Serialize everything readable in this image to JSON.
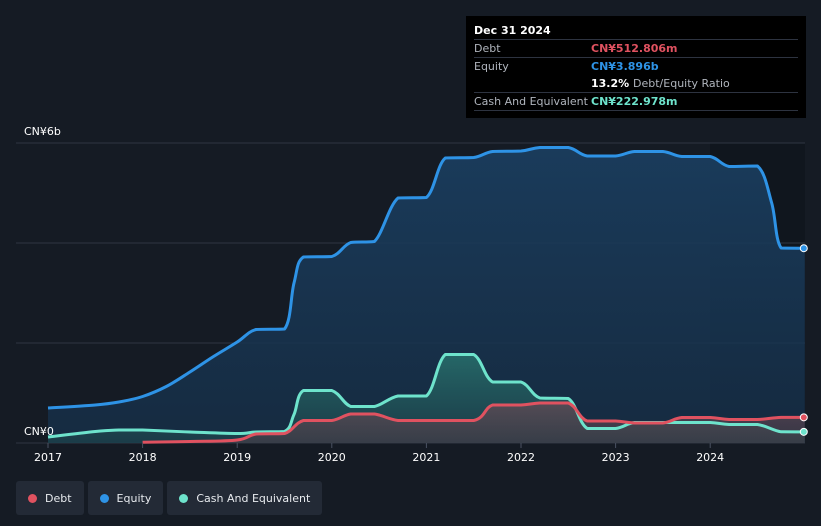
{
  "tooltip": {
    "date": "Dec 31 2024",
    "debt_label": "Debt",
    "debt_value": "CN¥512.806m",
    "equity_label": "Equity",
    "equity_value": "CN¥3.896b",
    "ratio_value": "13.2%",
    "ratio_label": "Debt/Equity Ratio",
    "cash_label": "Cash And Equivalent",
    "cash_value": "CN¥222.978m"
  },
  "legend": [
    {
      "label": "Debt",
      "color": "#e05260"
    },
    {
      "label": "Equity",
      "color": "#2e93e6"
    },
    {
      "label": "Cash And Equivalent",
      "color": "#6ee3cc"
    }
  ],
  "colors": {
    "debt": "#e05260",
    "equity": "#2e93e6",
    "cash": "#6ee3cc",
    "background": "#151b24",
    "grid": "#2e3542"
  },
  "chart_data": {
    "type": "area",
    "ylabel_top": "CN¥6b",
    "ylabel_bottom": "CN¥0",
    "ylim": [
      0,
      6000
    ],
    "xlim": [
      2017.0,
      2025.0
    ],
    "x_ticks": [
      "2017",
      "2018",
      "2019",
      "2020",
      "2021",
      "2022",
      "2023",
      "2024"
    ],
    "grid": true,
    "series": [
      {
        "name": "Equity",
        "points": [
          [
            2017.0,
            700
          ],
          [
            2017.5,
            760
          ],
          [
            2017.75,
            820
          ],
          [
            2018.0,
            930
          ],
          [
            2018.25,
            1130
          ],
          [
            2018.5,
            1420
          ],
          [
            2018.75,
            1730
          ],
          [
            2019.0,
            2020
          ],
          [
            2019.2,
            2270
          ],
          [
            2019.5,
            2280
          ],
          [
            2019.6,
            3200
          ],
          [
            2019.7,
            3720
          ],
          [
            2020.0,
            3730
          ],
          [
            2020.2,
            4010
          ],
          [
            2020.45,
            4030
          ],
          [
            2020.7,
            4900
          ],
          [
            2021.0,
            4910
          ],
          [
            2021.2,
            5700
          ],
          [
            2021.5,
            5710
          ],
          [
            2021.7,
            5830
          ],
          [
            2022.0,
            5840
          ],
          [
            2022.2,
            5910
          ],
          [
            2022.5,
            5910
          ],
          [
            2022.7,
            5740
          ],
          [
            2023.0,
            5740
          ],
          [
            2023.2,
            5830
          ],
          [
            2023.5,
            5830
          ],
          [
            2023.7,
            5730
          ],
          [
            2024.0,
            5730
          ],
          [
            2024.2,
            5530
          ],
          [
            2024.5,
            5540
          ],
          [
            2024.65,
            4800
          ],
          [
            2024.75,
            3900
          ],
          [
            2025.0,
            3896
          ]
        ]
      },
      {
        "name": "Cash And Equivalent",
        "points": [
          [
            2017.0,
            120
          ],
          [
            2017.5,
            230
          ],
          [
            2017.75,
            260
          ],
          [
            2018.0,
            260
          ],
          [
            2018.5,
            220
          ],
          [
            2019.0,
            190
          ],
          [
            2019.2,
            220
          ],
          [
            2019.5,
            230
          ],
          [
            2019.6,
            570
          ],
          [
            2019.7,
            1050
          ],
          [
            2020.0,
            1050
          ],
          [
            2020.2,
            730
          ],
          [
            2020.45,
            730
          ],
          [
            2020.7,
            940
          ],
          [
            2021.0,
            940
          ],
          [
            2021.2,
            1770
          ],
          [
            2021.5,
            1770
          ],
          [
            2021.7,
            1220
          ],
          [
            2022.0,
            1220
          ],
          [
            2022.2,
            900
          ],
          [
            2022.5,
            890
          ],
          [
            2022.7,
            290
          ],
          [
            2023.0,
            290
          ],
          [
            2023.2,
            410
          ],
          [
            2023.5,
            410
          ],
          [
            2023.7,
            410
          ],
          [
            2024.0,
            410
          ],
          [
            2024.2,
            370
          ],
          [
            2024.5,
            370
          ],
          [
            2024.75,
            225
          ],
          [
            2025.0,
            223
          ]
        ]
      },
      {
        "name": "Debt",
        "points": [
          [
            2018.0,
            15
          ],
          [
            2018.5,
            30
          ],
          [
            2019.0,
            60
          ],
          [
            2019.2,
            180
          ],
          [
            2019.5,
            190
          ],
          [
            2019.7,
            450
          ],
          [
            2020.0,
            450
          ],
          [
            2020.2,
            580
          ],
          [
            2020.45,
            580
          ],
          [
            2020.7,
            450
          ],
          [
            2021.0,
            450
          ],
          [
            2021.5,
            450
          ],
          [
            2021.7,
            760
          ],
          [
            2022.0,
            760
          ],
          [
            2022.2,
            800
          ],
          [
            2022.5,
            800
          ],
          [
            2022.7,
            440
          ],
          [
            2023.0,
            440
          ],
          [
            2023.2,
            400
          ],
          [
            2023.5,
            400
          ],
          [
            2023.7,
            510
          ],
          [
            2024.0,
            510
          ],
          [
            2024.2,
            470
          ],
          [
            2024.5,
            470
          ],
          [
            2024.75,
            513
          ],
          [
            2025.0,
            513
          ]
        ]
      }
    ]
  }
}
